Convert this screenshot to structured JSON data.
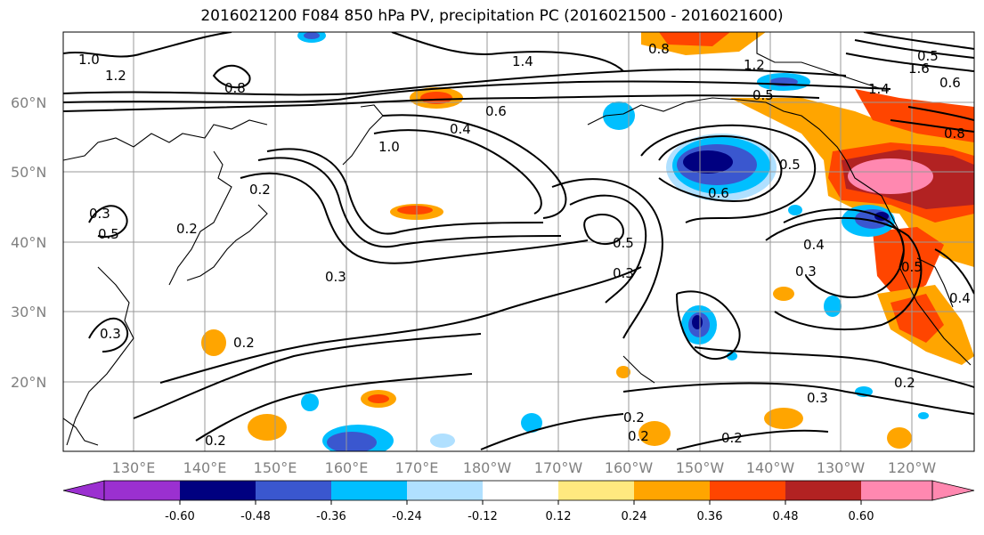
{
  "title": "2016021200 F084 850 hPa PV, precipitation PC (2016021500 - 2016021600)",
  "map": {
    "lat_labels": [
      "60°N",
      "50°N",
      "40°N",
      "30°N",
      "20°N"
    ],
    "lon_labels": [
      "130°E",
      "140°E",
      "150°E",
      "160°E",
      "170°E",
      "180°W",
      "170°W",
      "160°W",
      "150°W",
      "140°W",
      "130°W",
      "120°W"
    ],
    "contour_labels": [
      {
        "text": "1.0"
      },
      {
        "text": "1.2"
      },
      {
        "text": "0.8"
      },
      {
        "text": "1.4"
      },
      {
        "text": "0.8"
      },
      {
        "text": "1.2"
      },
      {
        "text": "0.5"
      },
      {
        "text": "1.4"
      },
      {
        "text": "1.6"
      },
      {
        "text": "0.8"
      },
      {
        "text": "0.6"
      },
      {
        "text": "0.4"
      },
      {
        "text": "1.0"
      },
      {
        "text": "0.2"
      },
      {
        "text": "0.3"
      },
      {
        "text": "0.5"
      },
      {
        "text": "0.2"
      },
      {
        "text": "0.3"
      },
      {
        "text": "0.2"
      },
      {
        "text": "0.3"
      },
      {
        "text": "0.5"
      },
      {
        "text": "0.3"
      },
      {
        "text": "0.5"
      },
      {
        "text": "0.6"
      },
      {
        "text": "0.4"
      },
      {
        "text": "0.3"
      },
      {
        "text": "0.5"
      },
      {
        "text": "0.4"
      },
      {
        "text": "0.2"
      },
      {
        "text": "0.3"
      },
      {
        "text": "0.2"
      },
      {
        "text": "0.2"
      },
      {
        "text": "0.2"
      },
      {
        "text": "0.2"
      },
      {
        "text": "0.5"
      },
      {
        "text": "0.6"
      }
    ]
  },
  "colorbar": {
    "colors": [
      "#9b30d0",
      "#000080",
      "#3a57cf",
      "#00bfff",
      "#b0e0ff",
      "#ffffff",
      "#ffe97f",
      "#ffa500",
      "#ff4500",
      "#b22222",
      "#ff88b0",
      "#ff88b0"
    ],
    "tick_labels": [
      "-0.60",
      "-0.48",
      "-0.36",
      "-0.24",
      "-0.12",
      "0.12",
      "0.24",
      "0.36",
      "0.48",
      "0.60"
    ]
  },
  "colors": {
    "neg_strong": "#000080",
    "neg_mid": "#3a57cf",
    "neg_light": "#00bfff",
    "neg_pale": "#b0e0ff",
    "pos_pale": "#ffe97f",
    "pos_mid": "#ffa500",
    "pos_strong": "#ff4500",
    "pos_dark": "#b22222",
    "pos_max": "#ff88b0"
  }
}
